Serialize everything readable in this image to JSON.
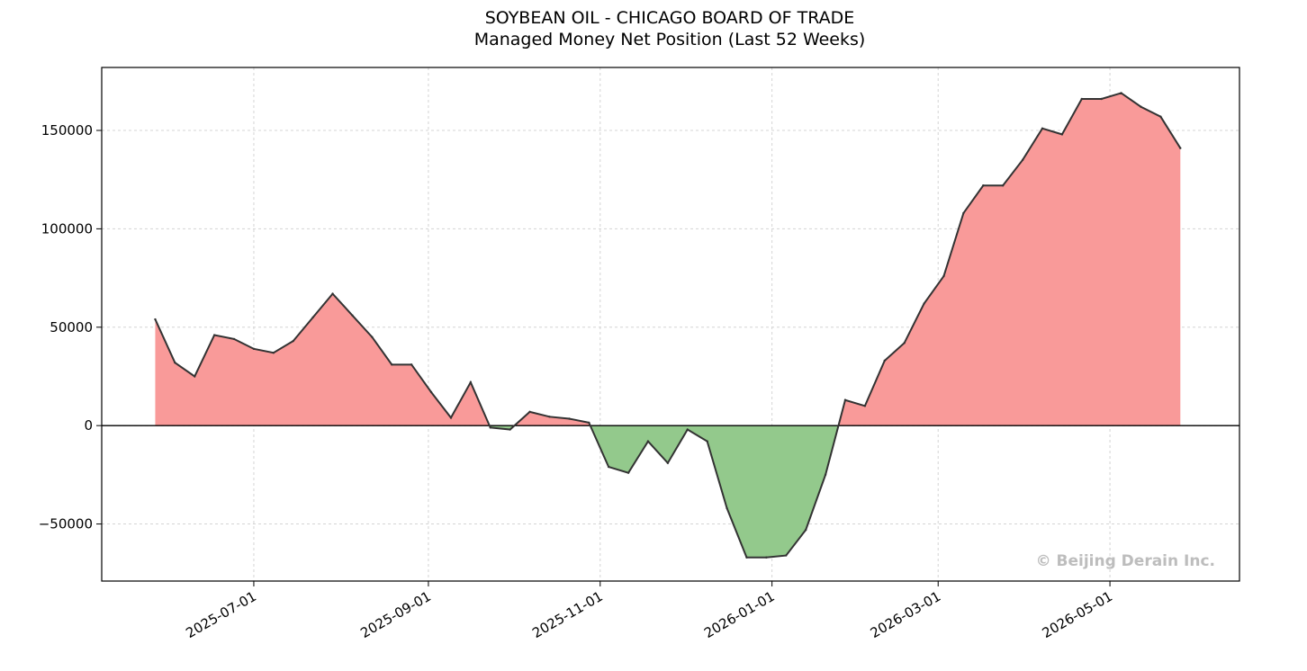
{
  "chart_data": {
    "type": "area",
    "title": "SOYBEAN OIL - CHICAGO BOARD OF TRADE",
    "subtitle": "Managed Money Net Position (Last 52 Weeks)",
    "xlabel": "",
    "ylabel": "",
    "watermark": "© Beijing Derain Inc.",
    "grid": true,
    "xlim": [
      "2025-05-08",
      "2026-06-16"
    ],
    "ylim": [
      -79000,
      182000
    ],
    "x_ticks": [
      "2025-07-01",
      "2025-09-01",
      "2025-11-01",
      "2026-01-01",
      "2026-03-01",
      "2026-05-01"
    ],
    "y_ticks": [
      -50000,
      0,
      50000,
      100000,
      150000
    ],
    "positive_color": "#f99a99",
    "negative_color": "#93c98c",
    "line_color": "#333333",
    "dates": [
      "2025-05-27",
      "2025-06-03",
      "2025-06-10",
      "2025-06-17",
      "2025-06-24",
      "2025-07-01",
      "2025-07-08",
      "2025-07-15",
      "2025-07-22",
      "2025-07-29",
      "2025-08-05",
      "2025-08-12",
      "2025-08-19",
      "2025-08-26",
      "2025-09-02",
      "2025-09-09",
      "2025-09-16",
      "2025-09-23",
      "2025-09-30",
      "2025-10-07",
      "2025-10-14",
      "2025-10-21",
      "2025-10-28",
      "2025-11-04",
      "2025-11-11",
      "2025-11-18",
      "2025-11-25",
      "2025-12-02",
      "2025-12-09",
      "2025-12-16",
      "2025-12-23",
      "2025-12-30",
      "2026-01-06",
      "2026-01-13",
      "2026-01-20",
      "2026-01-27",
      "2026-02-03",
      "2026-02-10",
      "2026-02-17",
      "2026-02-24",
      "2026-03-03",
      "2026-03-10",
      "2026-03-17",
      "2026-03-24",
      "2026-03-31",
      "2026-04-07",
      "2026-04-14",
      "2026-04-21",
      "2026-04-28",
      "2026-05-05",
      "2026-05-12",
      "2026-05-19",
      "2026-05-26"
    ],
    "values": [
      54000,
      32000,
      25000,
      46000,
      44000,
      39000,
      37000,
      43000,
      55000,
      67000,
      56000,
      45000,
      31000,
      31000,
      17000,
      4000,
      22000,
      -1000,
      -2000,
      7000,
      4500,
      3500,
      1500,
      -21000,
      -24000,
      -8000,
      -19000,
      -2000,
      -8000,
      -42000,
      -67000,
      -67000,
      -66000,
      -53000,
      -25000,
      13000,
      10000,
      33000,
      42000,
      62000,
      76000,
      108000,
      122000,
      122000,
      135000,
      151000,
      148000,
      166000,
      166000,
      169000,
      162000,
      157000,
      141000
    ]
  }
}
